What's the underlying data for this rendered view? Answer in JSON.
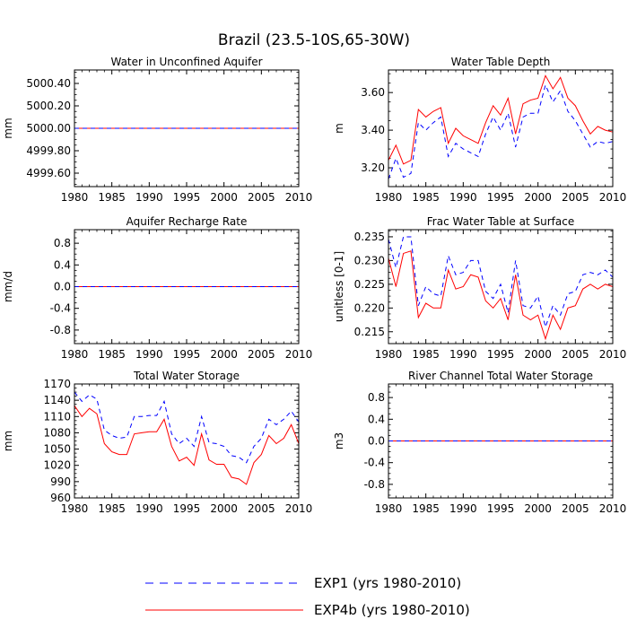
{
  "title": "Brazil (23.5-10S,65-30W)",
  "legend": [
    {
      "label": "EXP1 (yrs 1980-2010)",
      "color": "#0000ff",
      "dash": true
    },
    {
      "label": "EXP4b (yrs 1980-2010)",
      "color": "#ff0000",
      "dash": false
    }
  ],
  "chart_data": [
    {
      "type": "line",
      "title": "Water in Unconfined Aquifer",
      "ylabel": "mm",
      "xlim": [
        1980,
        2010
      ],
      "ylim": [
        4999.48,
        5000.52
      ],
      "xticks": [
        1980,
        1985,
        1990,
        1995,
        2000,
        2005,
        2010
      ],
      "yticks": [
        4999.6,
        4999.8,
        5000.0,
        5000.2,
        5000.4
      ],
      "ytick_labels": [
        "4999.60",
        "4999.80",
        "5000.00",
        "5000.20",
        "5000.40"
      ],
      "x": [
        1980,
        2010
      ],
      "series": [
        {
          "name": "EXP1",
          "values": [
            5000.0,
            5000.0
          ]
        },
        {
          "name": "EXP4b",
          "values": [
            5000.0,
            5000.0
          ]
        }
      ]
    },
    {
      "type": "line",
      "title": "Water Table Depth",
      "ylabel": "m",
      "xlim": [
        1980,
        2010
      ],
      "ylim": [
        3.1,
        3.72
      ],
      "xticks": [
        1980,
        1985,
        1990,
        1995,
        2000,
        2005,
        2010
      ],
      "yticks": [
        3.2,
        3.4,
        3.6
      ],
      "ytick_labels": [
        "3.20",
        "3.40",
        "3.60"
      ],
      "x": [
        1980,
        1981,
        1982,
        1983,
        1984,
        1985,
        1986,
        1987,
        1988,
        1989,
        1990,
        1991,
        1992,
        1993,
        1994,
        1995,
        1996,
        1997,
        1998,
        1999,
        2000,
        2001,
        2002,
        2003,
        2004,
        2005,
        2006,
        2007,
        2008,
        2009,
        2010
      ],
      "series": [
        {
          "name": "EXP1",
          "values": [
            3.14,
            3.25,
            3.15,
            3.17,
            3.44,
            3.4,
            3.44,
            3.47,
            3.26,
            3.33,
            3.3,
            3.28,
            3.26,
            3.38,
            3.47,
            3.4,
            3.49,
            3.31,
            3.47,
            3.49,
            3.49,
            3.64,
            3.55,
            3.61,
            3.5,
            3.45,
            3.38,
            3.31,
            3.34,
            3.33,
            3.34
          ]
        },
        {
          "name": "EXP4b",
          "values": [
            3.24,
            3.32,
            3.22,
            3.24,
            3.51,
            3.47,
            3.5,
            3.52,
            3.33,
            3.41,
            3.37,
            3.35,
            3.33,
            3.44,
            3.53,
            3.48,
            3.57,
            3.38,
            3.54,
            3.56,
            3.57,
            3.69,
            3.62,
            3.68,
            3.57,
            3.53,
            3.45,
            3.38,
            3.42,
            3.4,
            3.39
          ]
        }
      ]
    },
    {
      "type": "line",
      "title": "Aquifer Recharge Rate",
      "ylabel": "mm/d",
      "xlim": [
        1980,
        2010
      ],
      "ylim": [
        -1.05,
        1.05
      ],
      "xticks": [
        1980,
        1985,
        1990,
        1995,
        2000,
        2005,
        2010
      ],
      "yticks": [
        -0.8,
        -0.4,
        0.0,
        0.4,
        0.8
      ],
      "ytick_labels": [
        "-0.8",
        "-0.4",
        "0.0",
        "0.4",
        "0.8"
      ],
      "x": [
        1980,
        2010
      ],
      "series": [
        {
          "name": "EXP1",
          "values": [
            0.0,
            0.0
          ]
        },
        {
          "name": "EXP4b",
          "values": [
            0.0,
            0.0
          ]
        }
      ]
    },
    {
      "type": "line",
      "title": "Frac Water Table at Surface",
      "ylabel": "unitless [0-1]",
      "xlim": [
        1980,
        2010
      ],
      "ylim": [
        0.2125,
        0.2365
      ],
      "xticks": [
        1980,
        1985,
        1990,
        1995,
        2000,
        2005,
        2010
      ],
      "yticks": [
        0.215,
        0.22,
        0.225,
        0.23,
        0.235
      ],
      "ytick_labels": [
        "0.215",
        "0.220",
        "0.225",
        "0.230",
        "0.235"
      ],
      "x": [
        1980,
        1981,
        1982,
        1983,
        1984,
        1985,
        1986,
        1987,
        1988,
        1989,
        1990,
        1991,
        1992,
        1993,
        1994,
        1995,
        1996,
        1997,
        1998,
        1999,
        2000,
        2001,
        2002,
        2003,
        2004,
        2005,
        2006,
        2007,
        2008,
        2009,
        2010
      ],
      "series": [
        {
          "name": "EXP1",
          "values": [
            0.2345,
            0.2285,
            0.235,
            0.235,
            0.2205,
            0.2245,
            0.223,
            0.2225,
            0.231,
            0.227,
            0.2275,
            0.23,
            0.23,
            0.2235,
            0.222,
            0.225,
            0.219,
            0.23,
            0.2205,
            0.22,
            0.2225,
            0.216,
            0.2205,
            0.2185,
            0.223,
            0.2235,
            0.227,
            0.2275,
            0.227,
            0.228,
            0.2265
          ]
        },
        {
          "name": "EXP4b",
          "values": [
            0.2305,
            0.2245,
            0.2315,
            0.232,
            0.218,
            0.221,
            0.22,
            0.22,
            0.228,
            0.224,
            0.2245,
            0.227,
            0.2265,
            0.2215,
            0.22,
            0.222,
            0.2175,
            0.227,
            0.2185,
            0.2175,
            0.2185,
            0.2135,
            0.2185,
            0.2155,
            0.22,
            0.2205,
            0.224,
            0.225,
            0.224,
            0.225,
            0.2245
          ]
        }
      ]
    },
    {
      "type": "line",
      "title": "Total Water Storage",
      "ylabel": "mm",
      "xlim": [
        1980,
        2010
      ],
      "ylim": [
        960,
        1170
      ],
      "xticks": [
        1980,
        1985,
        1990,
        1995,
        2000,
        2005,
        2010
      ],
      "yticks": [
        960,
        990,
        1020,
        1050,
        1080,
        1110,
        1140,
        1170
      ],
      "ytick_labels": [
        "960",
        "990",
        "1020",
        "1050",
        "1080",
        "1110",
        "1140",
        "1170"
      ],
      "x": [
        1980,
        1981,
        1982,
        1983,
        1984,
        1985,
        1986,
        1987,
        1988,
        1989,
        1990,
        1991,
        1992,
        1993,
        1994,
        1995,
        1996,
        1997,
        1998,
        1999,
        2000,
        2001,
        2002,
        2003,
        2004,
        2005,
        2006,
        2007,
        2008,
        2009,
        2010
      ],
      "series": [
        {
          "name": "EXP1",
          "values": [
            1155,
            1138,
            1150,
            1142,
            1085,
            1075,
            1070,
            1072,
            1110,
            1110,
            1112,
            1112,
            1138,
            1078,
            1060,
            1070,
            1055,
            1110,
            1062,
            1060,
            1055,
            1038,
            1035,
            1025,
            1055,
            1070,
            1105,
            1095,
            1105,
            1120,
            1100
          ]
        },
        {
          "name": "EXP4b",
          "values": [
            1130,
            1110,
            1125,
            1115,
            1060,
            1045,
            1040,
            1040,
            1078,
            1080,
            1082,
            1082,
            1105,
            1055,
            1028,
            1035,
            1020,
            1078,
            1030,
            1022,
            1022,
            998,
            995,
            985,
            1025,
            1040,
            1075,
            1060,
            1070,
            1095,
            1060
          ]
        }
      ]
    },
    {
      "type": "line",
      "title": "River Channel Total Water Storage",
      "ylabel": "m3",
      "xlim": [
        1980,
        2010
      ],
      "ylim": [
        -1.05,
        1.05
      ],
      "xticks": [
        1980,
        1985,
        1990,
        1995,
        2000,
        2005,
        2010
      ],
      "yticks": [
        -0.8,
        -0.4,
        0.0,
        0.4,
        0.8
      ],
      "ytick_labels": [
        "-0.8",
        "-0.4",
        "0.0",
        "0.4",
        "0.8"
      ],
      "x": [
        1980,
        2010
      ],
      "series": [
        {
          "name": "EXP1",
          "values": [
            0.0,
            0.0
          ]
        },
        {
          "name": "EXP4b",
          "values": [
            0.0,
            0.0
          ]
        }
      ]
    }
  ]
}
